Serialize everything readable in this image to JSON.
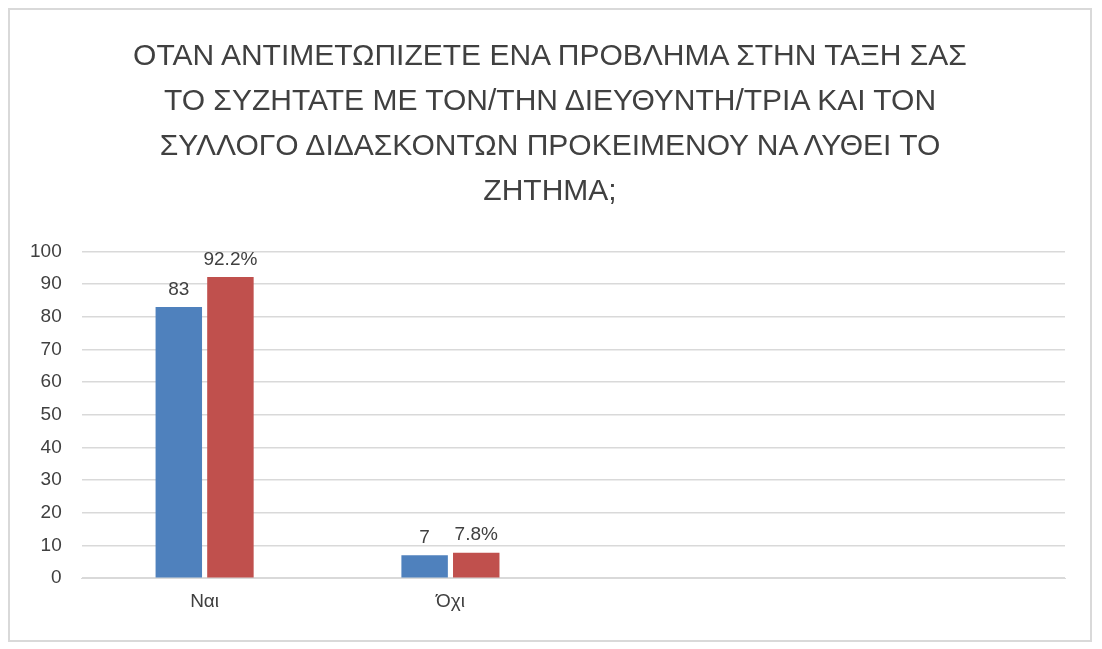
{
  "chart_data": {
    "type": "bar",
    "title": "ΟΤΑΝ ΑΝΤΙΜΕΤΩΠΙΖΕΤΕ ΕΝΑ ΠΡΟΒΛΗΜΑ ΣΤΗΝ ΤΑΞΗ ΣΑΣ ΤΟ ΣΥΖΗΤΑΤΕ ΜΕ ΤΟΝ/ΤΗΝ ΔΙΕΥΘΥΝΤΗ/ΤΡΙΑ ΚΑΙ ΤΟΝ ΣΥΛΛΟΓΟ ΔΙΔΑΣΚΟΝΤΩΝ ΠΡΟΚΕΙΜΕΝΟΥ ΝΑ ΛΥΘΕΙ ΤΟ ΖΗΤΗΜΑ;",
    "categories": [
      "Ναι",
      "Όχι",
      null,
      null
    ],
    "series": [
      {
        "color": "#4f81bd",
        "values": [
          83,
          7,
          null,
          null
        ],
        "value_labels": [
          "83",
          "7",
          null,
          null
        ]
      },
      {
        "color": "#c0504d",
        "values": [
          92.2,
          7.8,
          null,
          null
        ],
        "value_labels": [
          "92.2%",
          "7.8%",
          null,
          null
        ]
      }
    ],
    "ylim": [
      0,
      100
    ],
    "yticks": [
      0,
      10,
      20,
      30,
      40,
      50,
      60,
      70,
      80,
      90,
      100
    ],
    "grid": "y",
    "legend": false
  }
}
